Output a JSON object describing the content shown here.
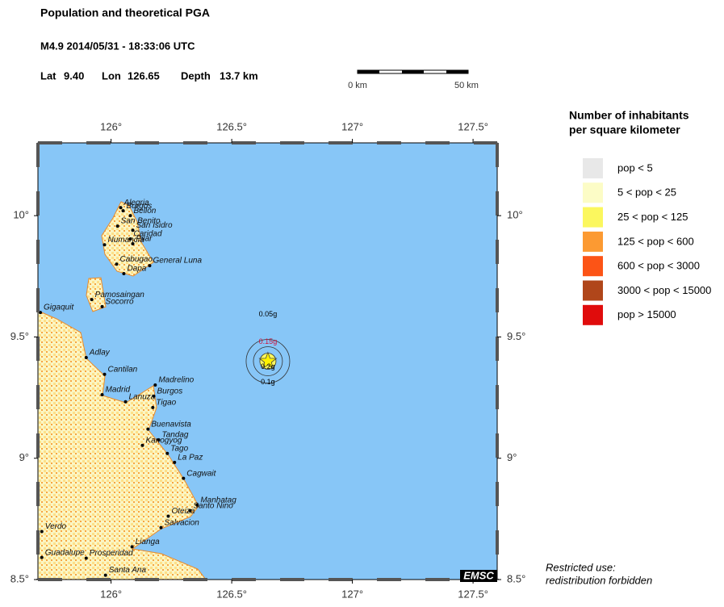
{
  "header": {
    "title": "Population and theoretical PGA",
    "event": "M4.9  2014/05/31 - 18:33:06 UTC",
    "lat_label": "Lat",
    "lat": {
      "value": 9.4,
      "label": "9.40"
    },
    "lon_label": "Lon",
    "lon": 126.65,
    "depth_label": "Depth",
    "depth": "13.7 km"
  },
  "scale_bar": {
    "start": "0 km",
    "end": "50 km"
  },
  "map": {
    "xlim": [
      125.697,
      127.6
    ],
    "ylim": [
      8.5,
      10.3
    ],
    "xticks": [
      {
        "value": 126,
        "label": "126°"
      },
      {
        "value": 126.5,
        "label": "126.5°"
      },
      {
        "value": 127,
        "label": "127°"
      },
      {
        "value": 127.5,
        "label": "127.5°"
      }
    ],
    "yticks": [
      {
        "value": 8.5,
        "label": "8.5°"
      },
      {
        "value": 9,
        "label": "9°"
      },
      {
        "value": 9.5,
        "label": "9.5°"
      },
      {
        "value": 10,
        "label": "10°"
      }
    ],
    "towns": [
      {
        "name": "Alegria",
        "lon": 126.04,
        "lat": 10.033
      },
      {
        "name": "Burgos",
        "lon": 126.05,
        "lat": 10.02
      },
      {
        "name": "Bellon",
        "lon": 126.08,
        "lat": 10.0
      },
      {
        "name": "San Benito",
        "lon": 126.027,
        "lat": 9.957
      },
      {
        "name": "San Isidro",
        "lon": 126.09,
        "lat": 9.94
      },
      {
        "name": "Caridad",
        "lon": 126.08,
        "lat": 9.904
      },
      {
        "name": "Numancia",
        "lon": 125.973,
        "lat": 9.88
      },
      {
        "name": "Pilar",
        "lon": 126.09,
        "lat": 9.884
      },
      {
        "name": "Cabugao",
        "lon": 126.023,
        "lat": 9.8
      },
      {
        "name": "General Luna",
        "lon": 126.16,
        "lat": 9.794
      },
      {
        "name": "Dapa",
        "lon": 126.053,
        "lat": 9.761
      },
      {
        "name": "Pamosaingan",
        "lon": 125.92,
        "lat": 9.654
      },
      {
        "name": "Socorro",
        "lon": 125.963,
        "lat": 9.625
      },
      {
        "name": "Gigaquit",
        "lon": 125.707,
        "lat": 9.601
      },
      {
        "name": "Adlay",
        "lon": 125.897,
        "lat": 9.415
      },
      {
        "name": "Cantilan",
        "lon": 125.973,
        "lat": 9.346
      },
      {
        "name": "Madrid",
        "lon": 125.963,
        "lat": 9.262
      },
      {
        "name": "Madrelino",
        "lon": 126.183,
        "lat": 9.302
      },
      {
        "name": "Lanuza",
        "lon": 126.06,
        "lat": 9.233
      },
      {
        "name": "Burgos",
        "lon": 126.177,
        "lat": 9.256
      },
      {
        "name": "Tigao",
        "lon": 126.173,
        "lat": 9.209
      },
      {
        "name": "Buenavista",
        "lon": 126.153,
        "lat": 9.12
      },
      {
        "name": "Tandag",
        "lon": 126.197,
        "lat": 9.076
      },
      {
        "name": "Kanogyog",
        "lon": 126.13,
        "lat": 9.053
      },
      {
        "name": "Tago",
        "lon": 126.233,
        "lat": 9.02
      },
      {
        "name": "La Paz",
        "lon": 126.263,
        "lat": 8.983
      },
      {
        "name": "Cagwait",
        "lon": 126.3,
        "lat": 8.917
      },
      {
        "name": "Manhatag",
        "lon": 126.357,
        "lat": 8.807
      },
      {
        "name": "Santo Nino",
        "lon": 126.327,
        "lat": 8.784
      },
      {
        "name": "Oteiza",
        "lon": 126.237,
        "lat": 8.761
      },
      {
        "name": "Salvacion",
        "lon": 126.207,
        "lat": 8.714
      },
      {
        "name": "Lianga",
        "lon": 126.087,
        "lat": 8.635
      },
      {
        "name": "Verdo",
        "lon": 125.713,
        "lat": 8.698
      },
      {
        "name": "Guadalupe",
        "lon": 125.713,
        "lat": 8.591
      },
      {
        "name": "Prosperidad",
        "lon": 125.897,
        "lat": 8.588
      },
      {
        "name": "Santa Ana",
        "lon": 125.977,
        "lat": 8.518
      }
    ],
    "pga_labels": [
      "0.05g",
      "0.15g",
      "0.2g",
      "0.1g"
    ]
  },
  "legend": {
    "title": [
      "Number of inhabitants",
      "per square kilometer"
    ],
    "items": [
      {
        "label": "pop < 5",
        "color": "#e8e8e8"
      },
      {
        "label": "5 < pop < 25",
        "color": "#fcfcc6"
      },
      {
        "label": "25 < pop < 125",
        "color": "#fbf75e"
      },
      {
        "label": "125 < pop < 600",
        "color": "#fc9a32"
      },
      {
        "label": "600 < pop < 3000",
        "color": "#fc5416"
      },
      {
        "label": "3000 < pop < 15000",
        "color": "#b0461a"
      },
      {
        "label": "pop > 15000",
        "color": "#e00c0c"
      }
    ]
  },
  "logo": "EMSC",
  "note": [
    "Restricted use:",
    "redistribution forbidden"
  ]
}
